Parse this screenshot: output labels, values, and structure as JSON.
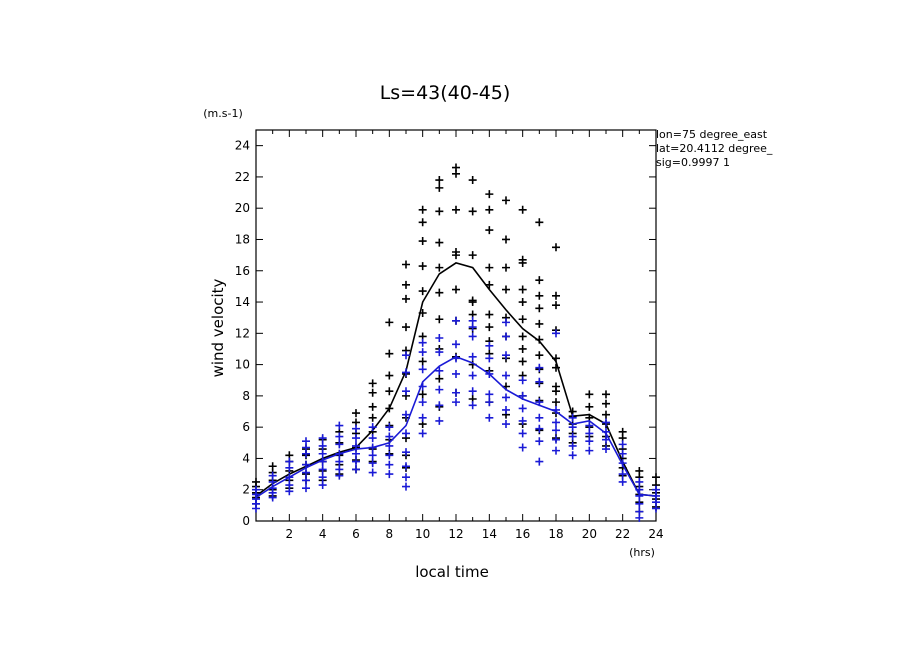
{
  "chart_data": {
    "type": "scatter",
    "title": "Ls=43(40-45)",
    "xlabel": "local time",
    "ylabel": "wind velocity",
    "x_unit": "(hrs)",
    "y_unit": "(m.s-1)",
    "xlim": [
      0,
      24
    ],
    "ylim": [
      0,
      25
    ],
    "xticks": [
      2,
      4,
      6,
      8,
      10,
      12,
      14,
      16,
      18,
      20,
      22,
      24
    ],
    "yticks": [
      0,
      2,
      4,
      6,
      8,
      10,
      12,
      14,
      16,
      18,
      20,
      22,
      24
    ],
    "grid": false,
    "legend": "none",
    "annotations": [
      "lon=75 degree_east",
      "lat=20.4112 degree_",
      "sig=0.9997 1"
    ],
    "x": [
      0,
      1,
      2,
      3,
      4,
      5,
      6,
      7,
      8,
      9,
      10,
      11,
      12,
      13,
      14,
      15,
      16,
      17,
      18,
      19,
      20,
      21,
      22,
      23,
      24
    ],
    "series": [
      {
        "color": "#000000",
        "mean": [
          1.6,
          2.4,
          3.0,
          3.5,
          4.0,
          4.4,
          4.7,
          5.8,
          7.2,
          9.6,
          14.0,
          15.8,
          16.5,
          16.2,
          14.8,
          13.5,
          12.3,
          11.5,
          10.2,
          6.7,
          6.8,
          6.2,
          3.8,
          1.7,
          1.6
        ],
        "points": [
          [
            1.1,
            1.5,
            1.8,
            2.2,
            2.5
          ],
          [
            1.6,
            2.0,
            2.6,
            3.1,
            3.5
          ],
          [
            2.1,
            2.6,
            3.2,
            3.8,
            4.2
          ],
          [
            2.6,
            3.0,
            3.6,
            4.2,
            4.6
          ],
          [
            2.6,
            3.2,
            3.8,
            4.6,
            5.2
          ],
          [
            3.0,
            3.6,
            4.2,
            5.0,
            5.7
          ],
          [
            3.3,
            3.9,
            4.7,
            5.6,
            6.3,
            6.9
          ],
          [
            3.8,
            4.6,
            5.7,
            6.6,
            7.3,
            8.2,
            8.8
          ],
          [
            4.3,
            5.2,
            6.1,
            7.2,
            8.3,
            9.3,
            10.7,
            12.7
          ],
          [
            3.4,
            4.2,
            5.3,
            6.6,
            8.0,
            9.4,
            10.9,
            12.4,
            14.2,
            15.1,
            16.4
          ],
          [
            6.2,
            8.1,
            10.2,
            11.8,
            13.3,
            14.7,
            16.3,
            17.9,
            19.1,
            19.9
          ],
          [
            7.3,
            9.1,
            11.0,
            12.9,
            14.6,
            16.2,
            17.8,
            19.8,
            21.3,
            21.8
          ],
          [
            8.2,
            10.5,
            12.8,
            14.8,
            17.0,
            17.2,
            19.9,
            22.2,
            22.6
          ],
          [
            7.8,
            10.0,
            12.3,
            13.2,
            14.0,
            14.1,
            17.0,
            19.8,
            21.8
          ],
          [
            7.6,
            9.6,
            10.7,
            11.5,
            12.4,
            13.2,
            15.1,
            16.2,
            18.6,
            19.9,
            20.9
          ],
          [
            6.8,
            8.6,
            10.4,
            11.8,
            13.0,
            14.8,
            16.2,
            18.0,
            20.5
          ],
          [
            6.2,
            8.0,
            9.3,
            10.2,
            11.0,
            11.8,
            12.9,
            14.0,
            14.8,
            16.5,
            16.7,
            19.9
          ],
          [
            5.8,
            7.7,
            8.8,
            9.7,
            10.6,
            11.6,
            12.6,
            13.6,
            14.4,
            15.4,
            19.1
          ],
          [
            5.3,
            6.9,
            7.6,
            8.3,
            8.6,
            9.8,
            10.4,
            12.2,
            13.8,
            14.4,
            17.5
          ],
          [
            5.0,
            5.6,
            6.2,
            6.7,
            7.0
          ],
          [
            5.4,
            6.0,
            6.6,
            7.3,
            8.1
          ],
          [
            4.8,
            5.4,
            6.2,
            6.8,
            7.5,
            8.1
          ],
          [
            2.9,
            3.4,
            4.0,
            4.6,
            5.3,
            5.7
          ],
          [
            0.6,
            1.2,
            1.7,
            2.2,
            2.8,
            3.2
          ],
          [
            0.9,
            1.4,
            1.8,
            2.3,
            2.8
          ]
        ]
      },
      {
        "color": "#1a1ad6",
        "mean": [
          1.5,
          2.2,
          2.8,
          3.4,
          3.9,
          4.3,
          4.6,
          4.7,
          5.0,
          6.1,
          8.9,
          9.9,
          10.5,
          10.1,
          9.4,
          8.4,
          7.8,
          7.4,
          7.0,
          6.2,
          6.4,
          5.6,
          3.6,
          1.7,
          1.6
        ],
        "points": [
          [
            0.8,
            1.1,
            1.4,
            1.7,
            2.0
          ],
          [
            1.5,
            1.8,
            2.1,
            2.5,
            2.9
          ],
          [
            1.9,
            2.3,
            2.8,
            3.4,
            3.8
          ],
          [
            2.1,
            2.6,
            3.1,
            3.6,
            4.3,
            4.7,
            5.1
          ],
          [
            2.3,
            2.8,
            3.3,
            3.8,
            4.3,
            4.8,
            5.3
          ],
          [
            2.9,
            3.3,
            3.8,
            4.3,
            4.9,
            5.4,
            6.1
          ],
          [
            3.3,
            3.8,
            4.3,
            4.8,
            5.3,
            5.9
          ],
          [
            3.1,
            3.7,
            4.2,
            4.7,
            5.3,
            6.0
          ],
          [
            3.0,
            3.6,
            4.2,
            4.8,
            5.4,
            6.0
          ],
          [
            2.2,
            2.8,
            3.5,
            4.4,
            5.6,
            6.8,
            8.3,
            9.5,
            10.6
          ],
          [
            5.6,
            6.6,
            7.6,
            8.6,
            9.7,
            10.8,
            11.4
          ],
          [
            6.4,
            7.4,
            8.4,
            9.6,
            10.8,
            11.7
          ],
          [
            7.6,
            8.2,
            9.4,
            10.4,
            11.3,
            12.8
          ],
          [
            7.4,
            8.3,
            9.3,
            10.5,
            11.8,
            12.4,
            12.8
          ],
          [
            6.6,
            7.6,
            8.1,
            9.4,
            10.4,
            11.2
          ],
          [
            6.2,
            7.1,
            7.9,
            9.3,
            10.6,
            11.8,
            12.7
          ],
          [
            4.7,
            5.6,
            6.4,
            7.2,
            8.0,
            9.0
          ],
          [
            3.8,
            5.1,
            5.9,
            6.6,
            7.6,
            8.9,
            9.8
          ],
          [
            4.5,
            5.2,
            5.8,
            6.3,
            7.1,
            12.0
          ],
          [
            4.2,
            4.8,
            5.4,
            6.0,
            6.6
          ],
          [
            4.5,
            5.1,
            5.6,
            6.1
          ],
          [
            4.6,
            5.2,
            5.7,
            6.3
          ],
          [
            2.5,
            3.0,
            3.7,
            4.3,
            4.9
          ],
          [
            0.2,
            0.6,
            1.1,
            1.6,
            2.0,
            2.5
          ],
          [
            0.8,
            1.2,
            1.6,
            2.0
          ]
        ]
      }
    ]
  }
}
